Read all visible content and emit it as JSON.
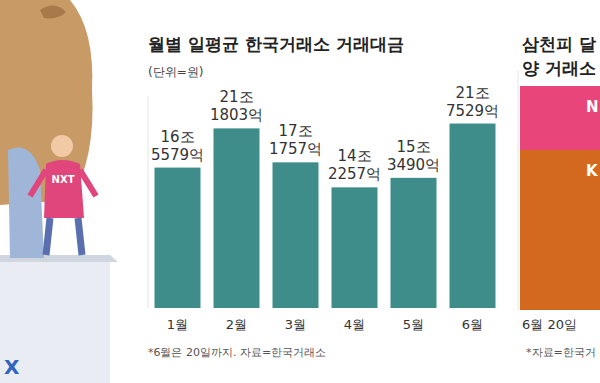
{
  "chart_data": [
    {
      "type": "bar",
      "title": "월별 일평균 한국거래소 거래대금",
      "subtitle": "(단위=원)",
      "categories": [
        "1월",
        "2월",
        "3월",
        "4월",
        "5월",
        "6월"
      ],
      "values": [
        16557900000000,
        21180300000000,
        17175700000000,
        14225700000000,
        15349000000000,
        21752900000000
      ],
      "value_labels": [
        "16조 5579억",
        "21조 1803억",
        "17조 1757억",
        "14조 2257억",
        "15조 3490억",
        "21조 7529억"
      ],
      "color": "#3e8d8a",
      "ylim": [
        0,
        25000000000000
      ],
      "tick_labels": "x",
      "data_labels": true,
      "grid": false,
      "annotations": [
        "*6월은 20일까지. 자료=한국거래소"
      ]
    },
    {
      "type": "bar",
      "stacked": true,
      "title": [
        "삼천피 달",
        "양 거래소"
      ],
      "categories": [
        "6월 20일"
      ],
      "series": [
        {
          "name": "K",
          "color": "#d2691e",
          "values": [
            20
          ]
        },
        {
          "name": "N",
          "color": "#e8457b",
          "values": [
            8
          ]
        }
      ],
      "ylim": [
        0,
        30
      ],
      "tick_labels": "x",
      "grid": false,
      "annotations": [
        "*자료=한국거"
      ]
    }
  ],
  "illustration": {
    "labels": [
      "NXT",
      "X"
    ]
  }
}
